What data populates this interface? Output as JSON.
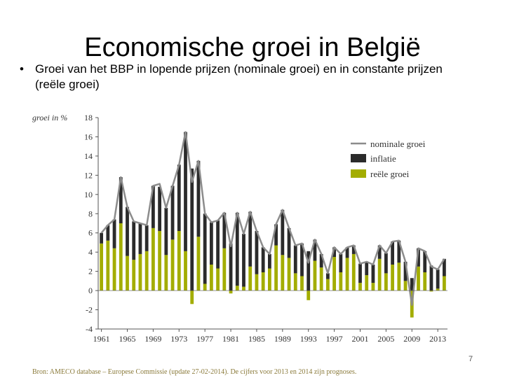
{
  "slide": {
    "title": "Economische groei in België",
    "bullet": "Groei van het BBP in lopende prijzen (nominale groei) en in constante prijzen (reële groei)",
    "bullet_marker": "•",
    "source": "Bron: AMECO database – Europese Commissie (update 27-02-2014). De cijfers voor 2013 en 2014 zijn prognoses.",
    "page_number": "7"
  },
  "colors": {
    "nominal": "#8c8c8c",
    "inflation": "#2b2b2b",
    "real": "#a3ad00",
    "axis": "#555555"
  },
  "chart_data": {
    "type": "bar",
    "stacked": true,
    "ylabel": "groei in %",
    "ylim": [
      -4,
      18
    ],
    "yticks": [
      -4,
      -2,
      0,
      2,
      4,
      6,
      8,
      10,
      12,
      14,
      16,
      18
    ],
    "xticks": [
      1961,
      1965,
      1969,
      1973,
      1977,
      1981,
      1985,
      1989,
      1993,
      1997,
      2001,
      2005,
      2009,
      2013
    ],
    "x": [
      1961,
      1962,
      1963,
      1964,
      1965,
      1966,
      1967,
      1968,
      1969,
      1970,
      1971,
      1972,
      1973,
      1974,
      1975,
      1976,
      1977,
      1978,
      1979,
      1980,
      1981,
      1982,
      1983,
      1984,
      1985,
      1986,
      1987,
      1988,
      1989,
      1990,
      1991,
      1992,
      1993,
      1994,
      1995,
      1996,
      1997,
      1998,
      1999,
      2000,
      2001,
      2002,
      2003,
      2004,
      2005,
      2006,
      2007,
      2008,
      2009,
      2010,
      2011,
      2012,
      2013,
      2014
    ],
    "legend_position": "top-right",
    "series": [
      {
        "name": "nominale groei",
        "kind": "line",
        "values": [
          6.0,
          6.8,
          7.4,
          11.8,
          8.7,
          7.2,
          7.0,
          6.8,
          10.9,
          11.1,
          8.6,
          10.9,
          13.1,
          16.5,
          11.3,
          13.5,
          8.0,
          7.1,
          7.3,
          8.1,
          4.6,
          8.1,
          5.9,
          8.2,
          6.2,
          4.5,
          3.8,
          6.9,
          8.4,
          6.5,
          4.7,
          4.9,
          2.9,
          5.3,
          3.8,
          1.8,
          4.5,
          3.8,
          4.5,
          4.7,
          2.8,
          3.0,
          2.7,
          4.7,
          3.9,
          5.1,
          5.2,
          3.0,
          -1.5,
          4.4,
          4.1,
          2.5,
          2.2,
          3.3
        ]
      },
      {
        "name": "inflatie",
        "kind": "bar",
        "values": [
          1.1,
          1.6,
          3.0,
          4.8,
          5.1,
          4.0,
          3.2,
          2.7,
          4.4,
          4.6,
          4.9,
          5.6,
          6.9,
          12.4,
          12.7,
          7.9,
          7.3,
          4.4,
          5.0,
          3.7,
          4.9,
          7.6,
          5.5,
          5.7,
          4.5,
          2.6,
          1.5,
          2.2,
          4.7,
          3.1,
          2.9,
          3.4,
          4.1,
          2.2,
          1.4,
          0.6,
          1.0,
          1.9,
          1.1,
          0.9,
          2.0,
          1.4,
          1.9,
          1.4,
          2.1,
          2.4,
          2.3,
          2.0,
          1.3,
          1.9,
          2.2,
          2.6,
          2.0,
          1.8
        ]
      },
      {
        "name": "reële groei",
        "kind": "bar",
        "values": [
          4.9,
          5.2,
          4.4,
          7.0,
          3.6,
          3.2,
          3.8,
          4.1,
          6.5,
          6.2,
          3.7,
          5.3,
          6.2,
          4.1,
          -1.4,
          5.6,
          0.7,
          2.7,
          2.3,
          4.4,
          -0.3,
          0.5,
          0.4,
          2.5,
          1.7,
          1.9,
          2.3,
          4.7,
          3.7,
          3.4,
          1.8,
          1.5,
          -1.0,
          3.1,
          2.4,
          1.2,
          3.5,
          1.9,
          3.4,
          3.8,
          0.8,
          1.6,
          0.8,
          3.3,
          1.8,
          2.7,
          2.9,
          1.0,
          -2.8,
          2.5,
          1.9,
          -0.1,
          0.2,
          1.5
        ]
      }
    ]
  }
}
